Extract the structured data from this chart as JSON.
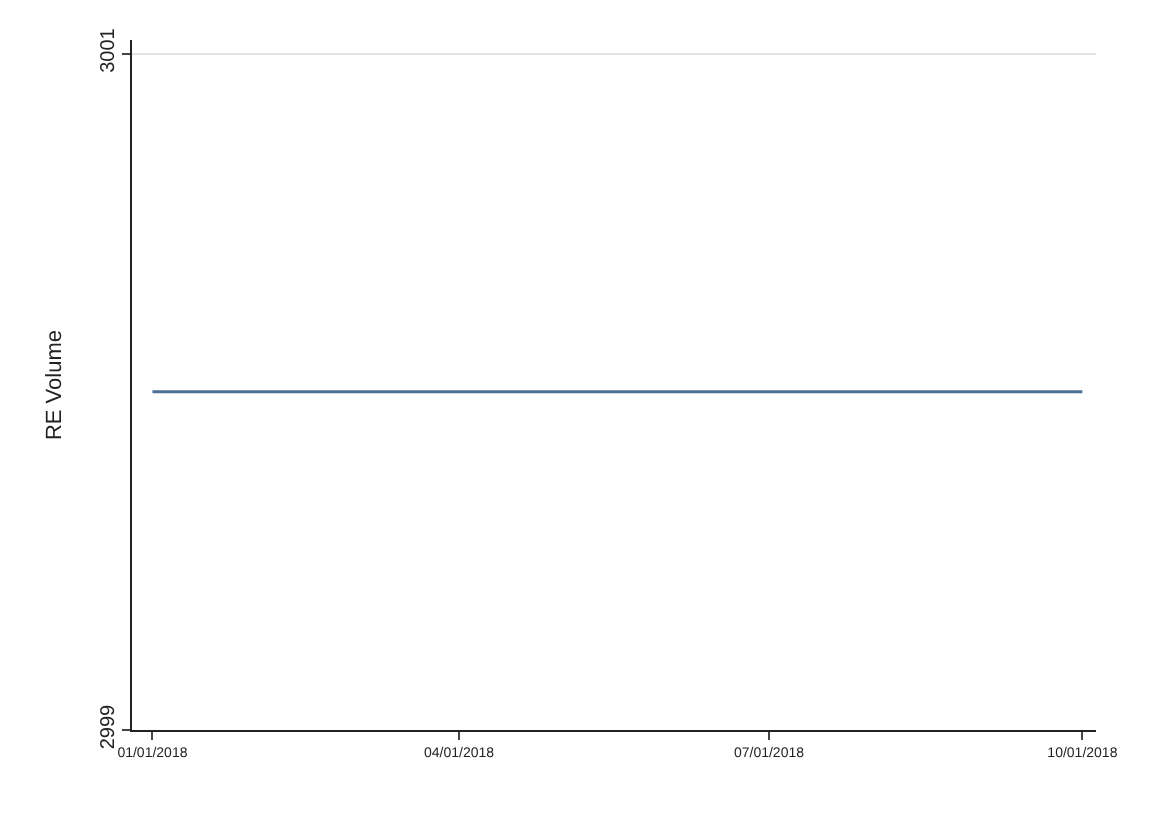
{
  "chart_data": {
    "type": "line",
    "ylabel": "RE Volume",
    "x": [
      "2018-01-01",
      "2018-10-01"
    ],
    "series": [
      {
        "color": "#4e6f96",
        "values": [
          3000,
          3000
        ]
      }
    ],
    "xlim": [
      "2017-12-26",
      "2018-10-05"
    ],
    "xticks": [
      {
        "value": "2018-01-01",
        "label": "01/01/2018"
      },
      {
        "value": "2018-04-01",
        "label": "04/01/2018"
      },
      {
        "value": "2018-07-01",
        "label": "07/01/2018"
      },
      {
        "value": "2018-10-01",
        "label": "10/01/2018"
      }
    ],
    "ylim": [
      2999,
      3001.04
    ],
    "yticks": [
      2999,
      3001
    ],
    "grid": "y",
    "legend": false,
    "marker": "none",
    "line_style": "solid"
  }
}
